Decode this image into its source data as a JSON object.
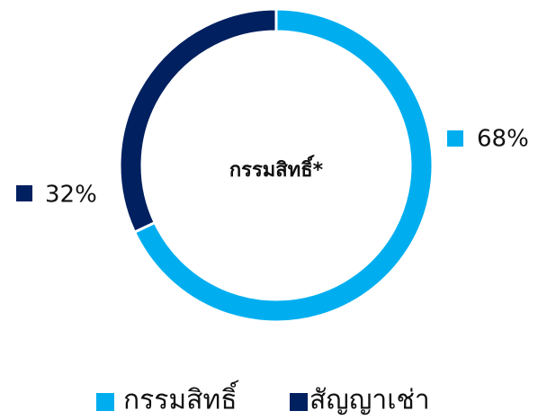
{
  "chart_data": {
    "type": "donut",
    "center_label": "กรรมสิทธิ์*",
    "categories": [
      "กรรมสิทธิ์",
      "สัญญาเช่า"
    ],
    "values": [
      68,
      32
    ],
    "value_labels": [
      "68%",
      "32%"
    ],
    "colors": [
      "#00aeef",
      "#002060"
    ]
  }
}
